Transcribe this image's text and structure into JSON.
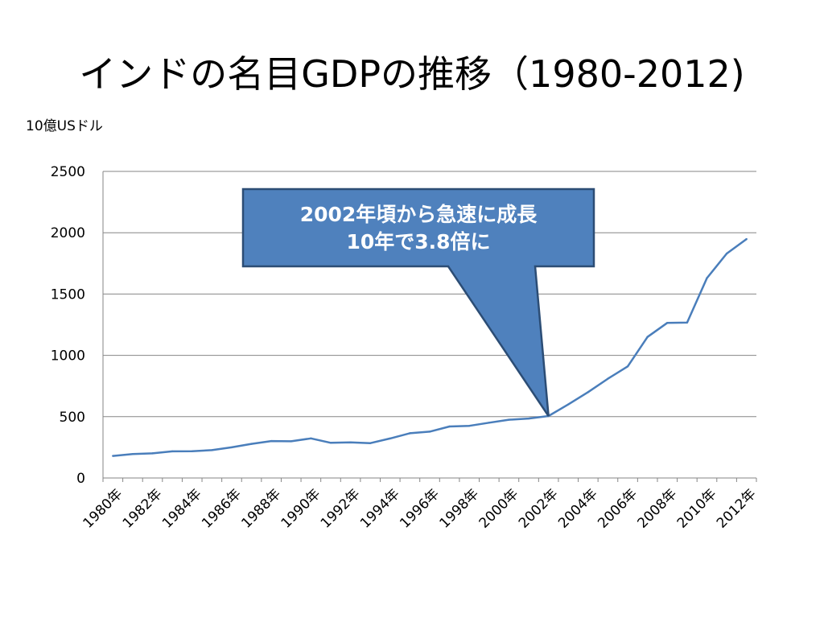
{
  "title": "インドの名目GDPの推移（1980-2012)",
  "chart_data": {
    "type": "line",
    "unit_label": "10億USドル",
    "ylim": [
      0,
      2500
    ],
    "yticks": [
      "0",
      "500",
      "1000",
      "1500",
      "2000",
      "2500"
    ],
    "x_tick_labels": [
      "1980年",
      "1982年",
      "1984年",
      "1986年",
      "1988年",
      "1990年",
      "1992年",
      "1994年",
      "1996年",
      "1998年",
      "2000年",
      "2002年",
      "2004年",
      "2006年",
      "2008年",
      "2010年",
      "2012年"
    ],
    "x": [
      1980,
      1981,
      1982,
      1983,
      1984,
      1985,
      1986,
      1987,
      1988,
      1989,
      1990,
      1991,
      1992,
      1993,
      1994,
      1995,
      1996,
      1997,
      1998,
      1999,
      2000,
      2001,
      2002,
      2003,
      2004,
      2005,
      2006,
      2007,
      2008,
      2009,
      2010,
      2011,
      2012
    ],
    "series": [
      {
        "values": [
          180,
          195,
          201,
          217,
          218,
          227,
          250,
          278,
          301,
          299,
          323,
          287,
          291,
          284,
          322,
          365,
          378,
          420,
          425,
          451,
          475,
          485,
          505,
          600,
          700,
          810,
          910,
          1150,
          1265,
          1267,
          1630,
          1830,
          1948
        ],
        "color": "#4A7EBB"
      }
    ],
    "grid": true,
    "annotation": {
      "lines": [
        "2002年頃から急速に成長",
        "10年で3.8倍に"
      ],
      "points_to_year": 2002,
      "points_to_value": 505,
      "fill": "#4F81BD",
      "stroke": "#2C4D75"
    }
  }
}
